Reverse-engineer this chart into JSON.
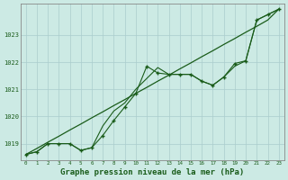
{
  "title": "Graphe pression niveau de la mer (hPa)",
  "background_color": "#cceae4",
  "grid_color": "#aacccc",
  "line_color": "#1a5c1a",
  "x_values": [
    0,
    1,
    2,
    3,
    4,
    5,
    6,
    7,
    8,
    9,
    10,
    11,
    12,
    13,
    14,
    15,
    16,
    17,
    18,
    19,
    20,
    21,
    22,
    23
  ],
  "x_labels": [
    "0",
    "1",
    "2",
    "3",
    "4",
    "5",
    "6",
    "7",
    "8",
    "9",
    "10",
    "11",
    "12",
    "13",
    "14",
    "15",
    "16",
    "17",
    "18",
    "19",
    "20",
    "21",
    "22",
    "23"
  ],
  "line_markers_y": [
    1018.6,
    1018.7,
    1019.0,
    1019.0,
    1019.0,
    1018.75,
    1018.85,
    1019.3,
    1019.85,
    1020.35,
    1020.85,
    1021.85,
    1021.6,
    1021.55,
    1021.55,
    1021.55,
    1021.3,
    1021.15,
    1021.45,
    1021.95,
    1022.05,
    1023.55,
    1023.75,
    1023.95
  ],
  "line_smooth_y": [
    1018.6,
    1018.7,
    1019.0,
    1019.0,
    1019.0,
    1018.75,
    1018.85,
    1019.65,
    1020.2,
    1020.5,
    1021.0,
    1021.4,
    1021.8,
    1021.55,
    1021.55,
    1021.55,
    1021.3,
    1021.15,
    1021.45,
    1021.85,
    1022.05,
    1023.55,
    1023.75,
    1023.95
  ],
  "line_diagonal_y": [
    1018.6,
    1018.82,
    1019.05,
    1019.27,
    1019.5,
    1019.72,
    1019.95,
    1020.17,
    1020.4,
    1020.62,
    1020.85,
    1021.07,
    1021.3,
    1021.52,
    1021.75,
    1021.97,
    1022.2,
    1022.42,
    1022.65,
    1022.87,
    1023.1,
    1023.32,
    1023.55,
    1023.95
  ],
  "ylim_min": 1018.4,
  "ylim_max": 1024.15,
  "yticks": [
    1019,
    1020,
    1021,
    1022,
    1023
  ],
  "title_color": "#1a5c1a",
  "title_fontsize": 6.5,
  "tick_fontsize": 5,
  "xtick_fontsize": 4.2
}
